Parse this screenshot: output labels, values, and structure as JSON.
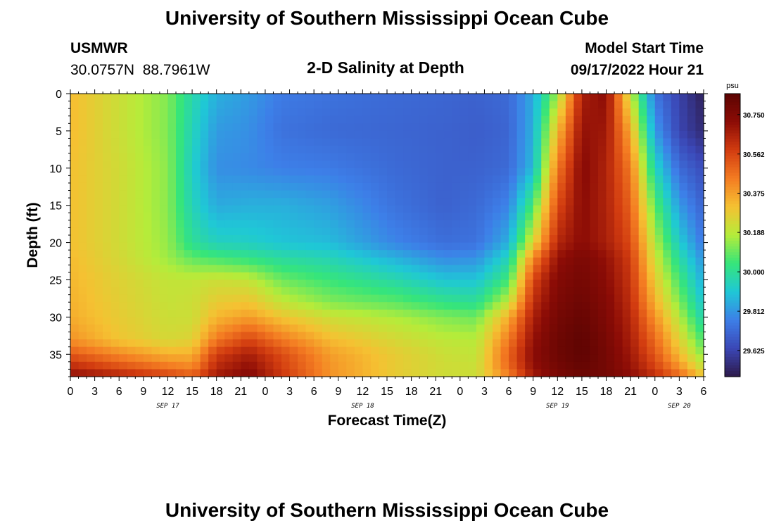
{
  "header": {
    "title": "University of Southern Mississippi Ocean Cube",
    "station_name": "USMWR",
    "station_coords": "30.0757N  88.7961W",
    "subtitle": "2-D Salinity at Depth",
    "model_label": "Model Start Time",
    "model_time": "09/17/2022 Hour 21"
  },
  "footer": {
    "title": "University of Southern Mississippi Ocean Cube"
  },
  "chart_data": {
    "type": "heatmap",
    "xlabel": "Forecast Time(Z)",
    "ylabel": "Depth (ft)",
    "x_unit": "hours from Sep 17 00Z",
    "xlim": [
      0,
      78
    ],
    "ylim": [
      0,
      38
    ],
    "y_inverted": true,
    "x_tick_labels": [
      "0",
      "3",
      "6",
      "9",
      "12",
      "15",
      "18",
      "21",
      "0",
      "3",
      "6",
      "9",
      "12",
      "15",
      "18",
      "21",
      "0",
      "3",
      "6",
      "9",
      "12",
      "15",
      "18",
      "21",
      "0",
      "3",
      "6"
    ],
    "y_tick_labels": [
      "0",
      "5",
      "10",
      "15",
      "20",
      "25",
      "30",
      "35"
    ],
    "date_labels": [
      {
        "text": "SEP 17",
        "hour": 12
      },
      {
        "text": "SEP 18",
        "hour": 36
      },
      {
        "text": "SEP 19",
        "hour": 60
      },
      {
        "text": "SEP 20",
        "hour": 75
      }
    ],
    "grid": false,
    "colorbar": {
      "unit": "psu",
      "range": [
        29.5,
        30.85
      ],
      "tick_labels": [
        "30.750",
        "30.562",
        "30.375",
        "30.188",
        "30.000",
        "29.812",
        "29.625"
      ],
      "colors": [
        "#2d1a4a",
        "#3b47b6",
        "#3d7fe8",
        "#1fc8d6",
        "#36e57a",
        "#b5ec3a",
        "#f5c132",
        "#f47c22",
        "#d23c10",
        "#8c0c06",
        "#5c0402"
      ]
    },
    "time_hours": [
      0,
      6,
      12,
      15,
      18,
      22,
      26,
      32,
      40,
      46,
      50,
      54,
      57,
      60,
      63,
      66,
      69,
      72,
      75,
      78
    ],
    "depth_ft": [
      0,
      5,
      10,
      15,
      20,
      22,
      25,
      28,
      30,
      33,
      35,
      37,
      38
    ],
    "salinity_psu": [
      [
        30.32,
        30.22,
        30.12,
        29.97,
        29.86,
        29.82,
        29.76,
        29.74,
        29.72,
        29.71,
        29.7,
        29.72,
        29.85,
        30.15,
        30.66,
        30.72,
        30.2,
        29.75,
        29.62,
        29.52
      ],
      [
        30.32,
        30.22,
        30.12,
        29.95,
        29.82,
        29.8,
        29.74,
        29.72,
        29.71,
        29.7,
        29.69,
        29.71,
        29.86,
        30.32,
        30.7,
        30.68,
        30.35,
        29.82,
        29.63,
        29.55
      ],
      [
        30.31,
        30.23,
        30.13,
        29.93,
        29.8,
        29.79,
        29.77,
        29.76,
        29.72,
        29.7,
        29.7,
        29.72,
        29.88,
        30.45,
        30.73,
        30.65,
        30.45,
        29.95,
        29.72,
        29.65
      ],
      [
        30.31,
        30.23,
        30.13,
        29.95,
        29.85,
        29.86,
        29.86,
        29.83,
        29.74,
        29.7,
        29.72,
        29.78,
        30.06,
        30.55,
        30.72,
        30.65,
        30.5,
        30.08,
        29.82,
        29.7
      ],
      [
        30.31,
        30.23,
        30.14,
        30.0,
        29.94,
        29.93,
        29.9,
        29.88,
        29.78,
        29.73,
        29.74,
        29.86,
        30.25,
        30.64,
        30.72,
        30.66,
        30.55,
        30.18,
        29.92,
        29.75
      ],
      [
        30.32,
        30.24,
        30.15,
        30.08,
        30.05,
        30.02,
        29.98,
        29.95,
        29.86,
        29.79,
        29.8,
        29.95,
        30.42,
        30.7,
        30.76,
        30.7,
        30.58,
        30.22,
        29.98,
        29.8
      ],
      [
        30.33,
        30.26,
        30.2,
        30.2,
        30.22,
        30.2,
        30.1,
        30.04,
        29.97,
        29.9,
        29.9,
        30.05,
        30.56,
        30.74,
        30.78,
        30.72,
        30.6,
        30.28,
        30.05,
        29.85
      ],
      [
        30.34,
        30.27,
        30.21,
        30.22,
        30.28,
        30.3,
        30.2,
        30.12,
        30.08,
        30.02,
        30.0,
        30.2,
        30.62,
        30.76,
        30.8,
        30.74,
        30.62,
        30.34,
        30.12,
        29.9
      ],
      [
        30.35,
        30.28,
        30.22,
        30.22,
        30.33,
        30.38,
        30.3,
        30.22,
        30.17,
        30.12,
        30.1,
        30.35,
        30.66,
        30.78,
        30.82,
        30.75,
        30.64,
        30.4,
        30.18,
        29.95
      ],
      [
        30.4,
        30.3,
        30.24,
        30.26,
        30.45,
        30.56,
        30.45,
        30.32,
        30.24,
        30.19,
        30.18,
        30.45,
        30.7,
        30.8,
        30.84,
        30.77,
        30.66,
        30.48,
        30.26,
        30.05
      ],
      [
        30.52,
        30.42,
        30.34,
        30.34,
        30.58,
        30.66,
        30.55,
        30.38,
        30.28,
        30.22,
        30.2,
        30.5,
        30.72,
        30.8,
        30.84,
        30.78,
        30.68,
        30.52,
        30.32,
        30.12
      ],
      [
        30.65,
        30.56,
        30.48,
        30.44,
        30.64,
        30.72,
        30.58,
        30.4,
        30.28,
        30.23,
        30.22,
        30.48,
        30.7,
        30.78,
        30.82,
        30.78,
        30.7,
        30.58,
        30.42,
        30.22
      ],
      [
        30.72,
        30.66,
        30.58,
        30.52,
        30.68,
        30.74,
        30.6,
        30.4,
        30.28,
        30.22,
        30.22,
        30.42,
        30.66,
        30.76,
        30.8,
        30.78,
        30.72,
        30.62,
        30.5,
        30.3
      ]
    ]
  }
}
